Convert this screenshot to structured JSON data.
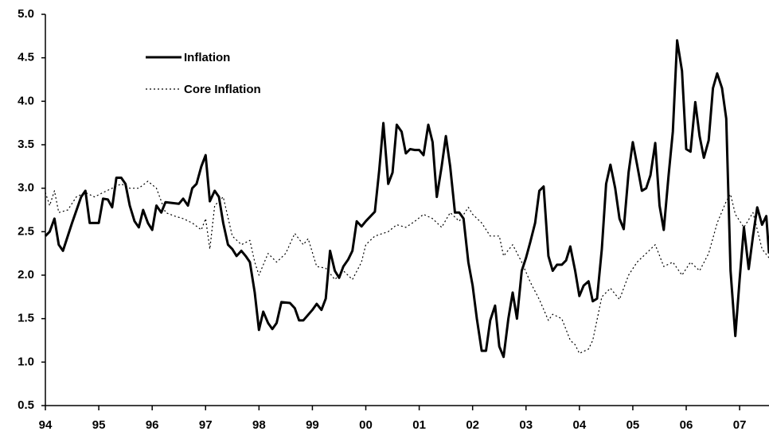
{
  "chart_data": {
    "type": "line",
    "xlim": [
      1994,
      2007.55
    ],
    "xticks": [
      {
        "value": 1994,
        "label": "94"
      },
      {
        "value": 1995,
        "label": "95"
      },
      {
        "value": 1996,
        "label": "96"
      },
      {
        "value": 1997,
        "label": "97"
      },
      {
        "value": 1998,
        "label": "98"
      },
      {
        "value": 1999,
        "label": "99"
      },
      {
        "value": 2000,
        "label": "00"
      },
      {
        "value": 2001,
        "label": "01"
      },
      {
        "value": 2002,
        "label": "02"
      },
      {
        "value": 2003,
        "label": "03"
      },
      {
        "value": 2004,
        "label": "04"
      },
      {
        "value": 2005,
        "label": "05"
      },
      {
        "value": 2006,
        "label": "06"
      },
      {
        "value": 2007,
        "label": "07"
      }
    ],
    "ylim": [
      0.5,
      5.0
    ],
    "yticks": [
      {
        "value": 0.5,
        "label": "0.5"
      },
      {
        "value": 1.0,
        "label": "1.0"
      },
      {
        "value": 1.5,
        "label": "1.5"
      },
      {
        "value": 2.0,
        "label": "2.0"
      },
      {
        "value": 2.5,
        "label": "2.5"
      },
      {
        "value": 3.0,
        "label": "3.0"
      },
      {
        "value": 3.5,
        "label": "3.5"
      },
      {
        "value": 4.0,
        "label": "4.0"
      },
      {
        "value": 4.5,
        "label": "4.5"
      },
      {
        "value": 5.0,
        "label": "5.0"
      }
    ],
    "grid": false,
    "series": [
      {
        "name": "Inflation",
        "color": "#000000",
        "style": "solid",
        "x": [
          1994.0,
          1994.08,
          1994.17,
          1994.25,
          1994.33,
          1994.5,
          1994.67,
          1994.75,
          1994.83,
          1995.0,
          1995.08,
          1995.17,
          1995.25,
          1995.33,
          1995.42,
          1995.5,
          1995.58,
          1995.67,
          1995.75,
          1995.83,
          1995.92,
          1996.0,
          1996.08,
          1996.17,
          1996.25,
          1996.5,
          1996.58,
          1996.67,
          1996.75,
          1996.83,
          1996.92,
          1997.0,
          1997.08,
          1997.17,
          1997.25,
          1997.33,
          1997.42,
          1997.5,
          1997.58,
          1997.67,
          1997.75,
          1997.83,
          1997.92,
          1998.0,
          1998.08,
          1998.17,
          1998.25,
          1998.33,
          1998.42,
          1998.58,
          1998.67,
          1998.75,
          1998.83,
          1999.0,
          1999.08,
          1999.17,
          1999.25,
          1999.33,
          1999.42,
          1999.5,
          1999.58,
          1999.67,
          1999.75,
          1999.83,
          1999.92,
          2000.0,
          2000.17,
          2000.25,
          2000.33,
          2000.42,
          2000.5,
          2000.58,
          2000.67,
          2000.75,
          2000.83,
          2000.92,
          2001.0,
          2001.08,
          2001.17,
          2001.25,
          2001.33,
          2001.42,
          2001.5,
          2001.58,
          2001.67,
          2001.75,
          2001.83,
          2001.92,
          2002.0,
          2002.08,
          2002.17,
          2002.25,
          2002.33,
          2002.42,
          2002.5,
          2002.58,
          2002.67,
          2002.75,
          2002.83,
          2002.92,
          2003.0,
          2003.08,
          2003.17,
          2003.25,
          2003.33,
          2003.42,
          2003.5,
          2003.58,
          2003.67,
          2003.75,
          2003.83,
          2003.92,
          2004.0,
          2004.08,
          2004.17,
          2004.25,
          2004.33,
          2004.42,
          2004.5,
          2004.58,
          2004.67,
          2004.75,
          2004.83,
          2004.92,
          2005.0,
          2005.08,
          2005.17,
          2005.25,
          2005.33,
          2005.42,
          2005.5,
          2005.58,
          2005.67,
          2005.75,
          2005.83,
          2005.92,
          2006.0,
          2006.08,
          2006.17,
          2006.25,
          2006.33,
          2006.42,
          2006.5,
          2006.58,
          2006.67,
          2006.75,
          2006.83,
          2006.92,
          2007.0,
          2007.08,
          2007.17,
          2007.25,
          2007.33,
          2007.42,
          2007.5,
          2007.55
        ],
        "values": [
          2.45,
          2.5,
          2.65,
          2.35,
          2.28,
          2.6,
          2.9,
          2.97,
          2.6,
          2.6,
          2.88,
          2.87,
          2.78,
          3.12,
          3.12,
          3.05,
          2.8,
          2.62,
          2.55,
          2.75,
          2.6,
          2.52,
          2.8,
          2.72,
          2.84,
          2.82,
          2.88,
          2.8,
          3.0,
          3.05,
          3.25,
          3.38,
          2.85,
          2.97,
          2.9,
          2.6,
          2.35,
          2.3,
          2.22,
          2.28,
          2.22,
          2.15,
          1.8,
          1.37,
          1.58,
          1.45,
          1.38,
          1.45,
          1.69,
          1.68,
          1.62,
          1.48,
          1.48,
          1.6,
          1.67,
          1.6,
          1.73,
          2.28,
          2.05,
          1.97,
          2.1,
          2.18,
          2.28,
          2.62,
          2.56,
          2.62,
          2.73,
          3.2,
          3.75,
          3.05,
          3.18,
          3.73,
          3.65,
          3.4,
          3.45,
          3.44,
          3.44,
          3.38,
          3.73,
          3.53,
          2.9,
          3.25,
          3.6,
          3.25,
          2.72,
          2.72,
          2.65,
          2.15,
          1.88,
          1.5,
          1.13,
          1.13,
          1.48,
          1.65,
          1.18,
          1.06,
          1.5,
          1.8,
          1.5,
          2.05,
          2.2,
          2.38,
          2.6,
          2.97,
          3.02,
          2.22,
          2.05,
          2.12,
          2.12,
          2.17,
          2.33,
          2.05,
          1.76,
          1.88,
          1.93,
          1.7,
          1.73,
          2.3,
          3.05,
          3.27,
          3.0,
          2.65,
          2.53,
          3.18,
          3.53,
          3.27,
          2.97,
          3.0,
          3.15,
          3.52,
          2.8,
          2.52,
          3.15,
          3.65,
          4.7,
          4.35,
          3.45,
          3.42,
          3.99,
          3.6,
          3.35,
          3.55,
          4.15,
          4.32,
          4.15,
          3.8,
          2.05,
          1.3,
          1.95,
          2.55,
          2.07,
          2.45,
          2.78,
          2.58,
          2.68,
          2.25
        ]
      },
      {
        "name": "Core Inflation",
        "color": "#000000",
        "style": "dotted",
        "x": [
          1994.0,
          1994.08,
          1994.17,
          1994.25,
          1994.42,
          1994.58,
          1994.75,
          1994.92,
          1995.08,
          1995.25,
          1995.42,
          1995.58,
          1995.75,
          1995.92,
          1996.08,
          1996.25,
          1996.42,
          1996.58,
          1996.75,
          1996.92,
          1997.0,
          1997.08,
          1997.17,
          1997.33,
          1997.5,
          1997.67,
          1997.83,
          1997.92,
          1998.0,
          1998.17,
          1998.33,
          1998.5,
          1998.67,
          1998.83,
          1998.92,
          1999.08,
          1999.25,
          1999.42,
          1999.58,
          1999.75,
          1999.92,
          2000.0,
          2000.17,
          2000.42,
          2000.58,
          2000.75,
          2000.92,
          2001.08,
          2001.25,
          2001.42,
          2001.58,
          2001.75,
          2001.92,
          2002.0,
          2002.17,
          2002.33,
          2002.5,
          2002.58,
          2002.75,
          2002.92,
          2003.08,
          2003.25,
          2003.42,
          2003.5,
          2003.67,
          2003.83,
          2003.92,
          2004.0,
          2004.17,
          2004.25,
          2004.42,
          2004.58,
          2004.75,
          2004.92,
          2005.08,
          2005.25,
          2005.42,
          2005.58,
          2005.75,
          2005.92,
          2006.08,
          2006.25,
          2006.42,
          2006.58,
          2006.75,
          2006.83,
          2006.92,
          2007.08,
          2007.25,
          2007.42,
          2007.55
        ],
        "values": [
          2.95,
          2.8,
          2.97,
          2.72,
          2.75,
          2.9,
          2.95,
          2.9,
          2.95,
          3.0,
          3.05,
          3.0,
          3.0,
          3.08,
          3.0,
          2.72,
          2.68,
          2.65,
          2.6,
          2.52,
          2.65,
          2.3,
          2.8,
          2.9,
          2.45,
          2.35,
          2.4,
          2.15,
          2.0,
          2.25,
          2.15,
          2.25,
          2.48,
          2.35,
          2.42,
          2.1,
          2.08,
          1.95,
          2.05,
          1.95,
          2.15,
          2.35,
          2.45,
          2.5,
          2.58,
          2.55,
          2.62,
          2.7,
          2.65,
          2.55,
          2.72,
          2.62,
          2.78,
          2.7,
          2.6,
          2.45,
          2.45,
          2.22,
          2.35,
          2.15,
          1.92,
          1.72,
          1.48,
          1.55,
          1.5,
          1.25,
          1.2,
          1.1,
          1.15,
          1.25,
          1.75,
          1.85,
          1.72,
          2.0,
          2.15,
          2.25,
          2.35,
          2.1,
          2.15,
          2.0,
          2.15,
          2.05,
          2.25,
          2.6,
          2.85,
          2.93,
          2.7,
          2.55,
          2.72,
          2.3,
          2.2
        ]
      }
    ]
  }
}
